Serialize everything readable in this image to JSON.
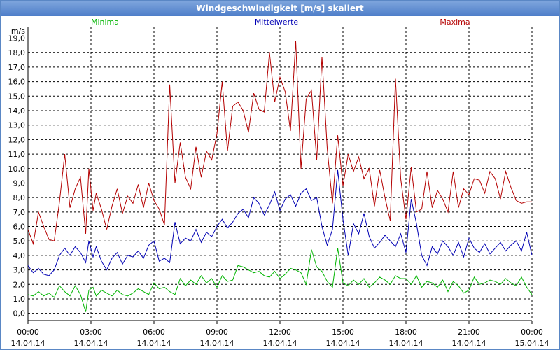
{
  "window": {
    "title": "Windgeschwindigkeit [m/s] skaliert"
  },
  "chart_data": {
    "type": "line",
    "title": "Windgeschwindigkeit [m/s] skaliert",
    "ylabel": "m/s",
    "xlabel": "",
    "ylim": [
      -0.5,
      19.8
    ],
    "xlim": [
      0,
      24
    ],
    "grid": true,
    "legend": "top",
    "y_ticks": [
      "0,0",
      "1,0",
      "2,0",
      "3,0",
      "4,0",
      "5,0",
      "6,0",
      "7,0",
      "8,0",
      "9,0",
      "10,0",
      "11,0",
      "12,0",
      "13,0",
      "14,0",
      "15,0",
      "16,0",
      "17,0",
      "18,0",
      "19,0"
    ],
    "x_ticks": [
      {
        "time": "00:00",
        "date": "14.04.14"
      },
      {
        "time": "03:00",
        "date": "14.04.14"
      },
      {
        "time": "06:00",
        "date": "14.04.14"
      },
      {
        "time": "09:00",
        "date": "14.04.14"
      },
      {
        "time": "12:00",
        "date": "14.04.14"
      },
      {
        "time": "15:00",
        "date": "14.04.14"
      },
      {
        "time": "18:00",
        "date": "14.04.14"
      },
      {
        "time": "21:00",
        "date": "14.04.14"
      },
      {
        "time": "00:00",
        "date": "15.04.14"
      }
    ],
    "series": [
      {
        "name": "Minima",
        "color": "#00b400",
        "x": [
          0,
          0.25,
          0.5,
          0.75,
          1,
          1.25,
          1.5,
          1.75,
          2,
          2.25,
          2.5,
          2.75,
          2.9,
          3.1,
          3.25,
          3.5,
          3.75,
          4,
          4.25,
          4.5,
          4.75,
          5,
          5.25,
          5.5,
          5.75,
          6,
          6.25,
          6.5,
          6.75,
          7,
          7.25,
          7.5,
          7.75,
          8,
          8.25,
          8.5,
          8.75,
          9,
          9.25,
          9.5,
          9.75,
          10,
          10.25,
          10.5,
          10.75,
          11,
          11.25,
          11.5,
          11.75,
          12,
          12.25,
          12.5,
          12.75,
          13,
          13.25,
          13.5,
          13.75,
          14,
          14.25,
          14.5,
          14.75,
          15,
          15.25,
          15.5,
          15.75,
          16,
          16.25,
          16.5,
          16.75,
          17,
          17.25,
          17.5,
          17.75,
          18,
          18.25,
          18.5,
          18.75,
          19,
          19.25,
          19.5,
          19.75,
          20,
          20.25,
          20.5,
          20.75,
          21,
          21.25,
          21.5,
          21.75,
          22,
          22.25,
          22.5,
          22.75,
          23,
          23.25,
          23.5,
          23.75,
          24
        ],
        "values": [
          1.3,
          1.2,
          1.5,
          1.2,
          1.4,
          1.1,
          1.9,
          1.5,
          1.2,
          1.9,
          1.3,
          0.1,
          1.6,
          1.8,
          1.2,
          1.6,
          1.4,
          1.2,
          1.6,
          1.3,
          1.2,
          1.4,
          1.7,
          1.5,
          1.3,
          2.1,
          1.7,
          1.8,
          1.5,
          1.3,
          2.4,
          1.9,
          2.3,
          2.0,
          2.6,
          2.1,
          2.4,
          1.8,
          2.6,
          2.2,
          2.3,
          3.3,
          3.2,
          3.0,
          2.8,
          2.9,
          2.6,
          2.5,
          2.9,
          2.4,
          2.7,
          3.1,
          3.0,
          2.8,
          2.0,
          4.4,
          3.2,
          2.9,
          2.2,
          1.8,
          4.5,
          2.1,
          1.9,
          2.3,
          2.0,
          2.4,
          1.8,
          2.1,
          2.5,
          2.3,
          2.0,
          2.6,
          2.4,
          2.4,
          2.0,
          2.6,
          1.8,
          2.2,
          2.1,
          1.8,
          2.3,
          1.5,
          2.2,
          1.9,
          1.4,
          1.6,
          2.5,
          2.0,
          2.1,
          2.3,
          2.2,
          2.0,
          2.4,
          2.1,
          1.9,
          2.5,
          1.8,
          1.3
        ]
      },
      {
        "name": "Mittelwerte",
        "color": "#0000b4",
        "x": [
          0,
          0.25,
          0.5,
          0.75,
          1,
          1.25,
          1.5,
          1.75,
          2,
          2.25,
          2.5,
          2.75,
          2.9,
          3.1,
          3.25,
          3.5,
          3.75,
          4,
          4.25,
          4.5,
          4.75,
          5,
          5.25,
          5.5,
          5.75,
          6,
          6.25,
          6.5,
          6.75,
          7,
          7.25,
          7.5,
          7.75,
          8,
          8.25,
          8.5,
          8.75,
          9,
          9.25,
          9.5,
          9.75,
          10,
          10.25,
          10.5,
          10.75,
          11,
          11.25,
          11.5,
          11.75,
          12,
          12.25,
          12.5,
          12.75,
          13,
          13.25,
          13.5,
          13.75,
          14,
          14.25,
          14.5,
          14.75,
          15,
          15.25,
          15.5,
          15.75,
          16,
          16.25,
          16.5,
          16.75,
          17,
          17.25,
          17.5,
          17.75,
          18,
          18.25,
          18.5,
          18.75,
          19,
          19.25,
          19.5,
          19.75,
          20,
          20.25,
          20.5,
          20.75,
          21,
          21.25,
          21.5,
          21.75,
          22,
          22.25,
          22.5,
          22.75,
          23,
          23.25,
          23.5,
          23.75,
          24
        ],
        "values": [
          3.3,
          2.8,
          3.1,
          2.7,
          2.6,
          3.0,
          4.0,
          4.5,
          4.0,
          4.6,
          4.2,
          3.5,
          5.0,
          3.9,
          4.6,
          3.6,
          3.0,
          3.8,
          4.2,
          3.4,
          4.0,
          3.9,
          4.3,
          3.8,
          4.7,
          5.0,
          3.6,
          3.8,
          3.5,
          6.3,
          4.8,
          5.2,
          5.0,
          5.8,
          4.9,
          5.6,
          5.3,
          6.0,
          6.5,
          5.9,
          6.3,
          6.9,
          7.2,
          6.6,
          8.0,
          7.6,
          6.8,
          7.5,
          8.4,
          7.1,
          7.9,
          8.2,
          7.4,
          8.3,
          8.6,
          7.8,
          8.0,
          6.0,
          4.7,
          5.8,
          9.9,
          6.5,
          4.0,
          6.2,
          5.5,
          6.9,
          5.3,
          4.5,
          4.9,
          5.4,
          5.0,
          4.6,
          5.5,
          4.2,
          7.9,
          6.2,
          4.0,
          3.3,
          4.6,
          4.1,
          5.0,
          4.6,
          4.0,
          4.9,
          3.9,
          5.2,
          4.5,
          4.2,
          4.8,
          4.1,
          4.5,
          4.9,
          4.3,
          4.7,
          5.0,
          4.3,
          5.6,
          4.0
        ]
      },
      {
        "name": "Maxima",
        "color": "#b40000",
        "x": [
          0,
          0.25,
          0.5,
          0.75,
          1,
          1.25,
          1.5,
          1.75,
          2,
          2.25,
          2.5,
          2.75,
          2.9,
          3.1,
          3.25,
          3.5,
          3.75,
          4,
          4.25,
          4.5,
          4.75,
          5,
          5.25,
          5.5,
          5.75,
          6,
          6.25,
          6.5,
          6.75,
          7,
          7.25,
          7.5,
          7.75,
          8,
          8.25,
          8.5,
          8.75,
          9,
          9.25,
          9.5,
          9.75,
          10,
          10.25,
          10.5,
          10.75,
          11,
          11.25,
          11.5,
          11.75,
          12,
          12.25,
          12.5,
          12.75,
          13,
          13.25,
          13.5,
          13.75,
          14,
          14.25,
          14.5,
          14.75,
          15,
          15.25,
          15.5,
          15.75,
          16,
          16.25,
          16.5,
          16.75,
          17,
          17.25,
          17.5,
          17.75,
          18,
          18.25,
          18.5,
          18.75,
          19,
          19.25,
          19.5,
          19.75,
          20,
          20.25,
          20.5,
          20.75,
          21,
          21.25,
          21.5,
          21.75,
          22,
          22.25,
          22.5,
          22.75,
          23,
          23.25,
          23.5,
          23.75,
          24
        ],
        "values": [
          5.8,
          4.8,
          7.0,
          6.0,
          5.1,
          5.0,
          7.7,
          11.0,
          7.3,
          8.6,
          9.4,
          5.5,
          10.0,
          7.1,
          8.3,
          7.2,
          5.8,
          7.4,
          8.6,
          6.9,
          8.1,
          7.6,
          8.9,
          7.3,
          9.0,
          7.8,
          7.2,
          6.1,
          15.8,
          9.0,
          11.8,
          9.4,
          8.6,
          11.5,
          9.4,
          11.2,
          10.6,
          12.4,
          16.0,
          11.2,
          14.3,
          14.6,
          14.0,
          12.5,
          15.2,
          14.1,
          13.9,
          18.0,
          14.6,
          16.3,
          15.3,
          12.6,
          18.8,
          10.0,
          14.8,
          15.4,
          10.6,
          17.7,
          11.4,
          7.6,
          12.3,
          8.8,
          11.0,
          9.8,
          10.8,
          9.3,
          10.0,
          7.4,
          9.9,
          8.0,
          6.4,
          16.2,
          9.3,
          6.5,
          10.1,
          7.0,
          7.2,
          9.8,
          7.3,
          8.5,
          7.9,
          7.0,
          9.8,
          7.3,
          8.6,
          8.2,
          9.3,
          9.2,
          8.3,
          9.8,
          9.3,
          7.9,
          9.8,
          8.7,
          7.8,
          7.6,
          7.7,
          7.7
        ]
      }
    ]
  }
}
